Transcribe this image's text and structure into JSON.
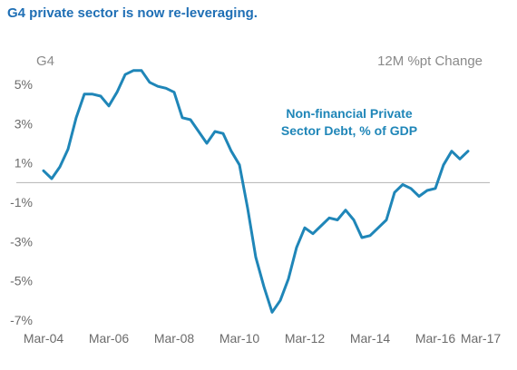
{
  "headline": "G4 private sector is now re-leveraging.",
  "chart_data": {
    "type": "line",
    "title": "G4",
    "subtitle": "12M %pt Change",
    "annotation": [
      "Non-financial Private",
      "Sector Debt, % of GDP"
    ],
    "xlabel": "",
    "ylabel": "",
    "x_ticks": [
      "Mar-04",
      "Mar-06",
      "Mar-08",
      "Mar-10",
      "Mar-12",
      "Mar-14",
      "Mar-16",
      "Mar-17"
    ],
    "y_ticks": [
      "5%",
      "3%",
      "1%",
      "-1%",
      "-3%",
      "-5%",
      "-7%"
    ],
    "xlim": [
      "Mar-04",
      "Mar-17"
    ],
    "ylim": [
      -7,
      6
    ],
    "grid": false,
    "zero_line": true,
    "series_color": "#1f86b8",
    "series": [
      {
        "x": [
          "Mar-04",
          "Jun-04",
          "Sep-04",
          "Dec-04",
          "Mar-05",
          "Jun-05",
          "Sep-05",
          "Dec-05",
          "Mar-06",
          "Jun-06",
          "Sep-06",
          "Dec-06",
          "Mar-07",
          "Jun-07",
          "Sep-07",
          "Dec-07",
          "Mar-08",
          "Jun-08",
          "Sep-08",
          "Dec-08",
          "Mar-09",
          "Jun-09",
          "Sep-09",
          "Dec-09",
          "Mar-10",
          "Jun-10",
          "Sep-10",
          "Dec-10",
          "Mar-11",
          "Jun-11",
          "Sep-11",
          "Dec-11",
          "Mar-12",
          "Jun-12",
          "Sep-12",
          "Dec-12",
          "Mar-13",
          "Jun-13",
          "Sep-13",
          "Dec-13",
          "Mar-14",
          "Jun-14",
          "Sep-14",
          "Dec-14",
          "Mar-15",
          "Jun-15",
          "Sep-15",
          "Dec-15",
          "Mar-16",
          "Jun-16",
          "Sep-16",
          "Dec-16",
          "Mar-17"
        ],
        "values": [
          0.6,
          0.2,
          0.8,
          1.7,
          3.3,
          4.5,
          4.5,
          4.4,
          3.9,
          4.6,
          5.5,
          5.7,
          5.7,
          5.1,
          4.9,
          4.8,
          4.6,
          3.3,
          3.2,
          2.6,
          2.0,
          2.6,
          2.5,
          1.6,
          0.9,
          -1.3,
          -3.8,
          -5.3,
          -6.6,
          -6.0,
          -4.9,
          -3.3,
          -2.3,
          -2.6,
          -2.2,
          -1.8,
          -1.9,
          -1.4,
          -1.9,
          -2.8,
          -2.7,
          -2.3,
          -1.9,
          -0.5,
          -0.1,
          -0.3,
          -0.7,
          -0.4,
          -0.3,
          0.9,
          1.6,
          1.2,
          1.6
        ]
      }
    ]
  }
}
